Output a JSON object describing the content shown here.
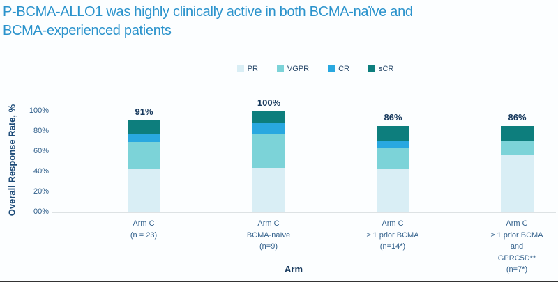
{
  "slide": {
    "title": "P-BCMA-ALLO1 was highly clinically active in both BCMA-naïve and BCMA-experienced patients"
  },
  "legend": [
    {
      "label": "PR",
      "color": "#d9eef5"
    },
    {
      "label": "VGPR",
      "color": "#7cd3d8"
    },
    {
      "label": "CR",
      "color": "#29a8e0"
    },
    {
      "label": "sCR",
      "color": "#0d7e7d"
    }
  ],
  "y_axis": {
    "title": "Overall Response Rate, %",
    "tick_labels": [
      "100%",
      "80%",
      "60%",
      "40%",
      "20%",
      "00%"
    ],
    "tick_values": [
      100,
      80,
      60,
      40,
      20,
      0
    ]
  },
  "x_axis": {
    "title": "Arm"
  },
  "chart_data": {
    "type": "bar",
    "stacked": true,
    "title": "P-BCMA-ALLO1 was highly clinically active in both BCMA-naïve and BCMA-experienced patients",
    "xlabel": "Arm",
    "ylabel": "Overall Response Rate, %",
    "ylim": [
      0,
      100
    ],
    "grid": false,
    "legend_position": "top",
    "categories": [
      [
        "Arm C",
        "(n = 23)"
      ],
      [
        "Arm C",
        "BCMA-naïve",
        "(n=9)"
      ],
      [
        "Arm C",
        "≥ 1 prior BCMA",
        "(n=14*)"
      ],
      [
        "Arm C",
        "≥ 1 prior BCMA",
        "and",
        "GPRC5D**",
        "(n=7*)"
      ]
    ],
    "totals": [
      "91%",
      "100%",
      "86%",
      "86%"
    ],
    "series": [
      {
        "name": "PR",
        "color": "#d9eef5",
        "values": [
          43.5,
          44.4,
          42.9,
          57.1
        ]
      },
      {
        "name": "VGPR",
        "color": "#7cd3d8",
        "values": [
          26.1,
          33.3,
          21.4,
          14.3
        ]
      },
      {
        "name": "CR",
        "color": "#29a8e0",
        "values": [
          8.7,
          11.1,
          7.1,
          0
        ]
      },
      {
        "name": "sCR",
        "color": "#0d7e7d",
        "values": [
          13.0,
          11.1,
          14.3,
          14.3
        ]
      }
    ]
  }
}
